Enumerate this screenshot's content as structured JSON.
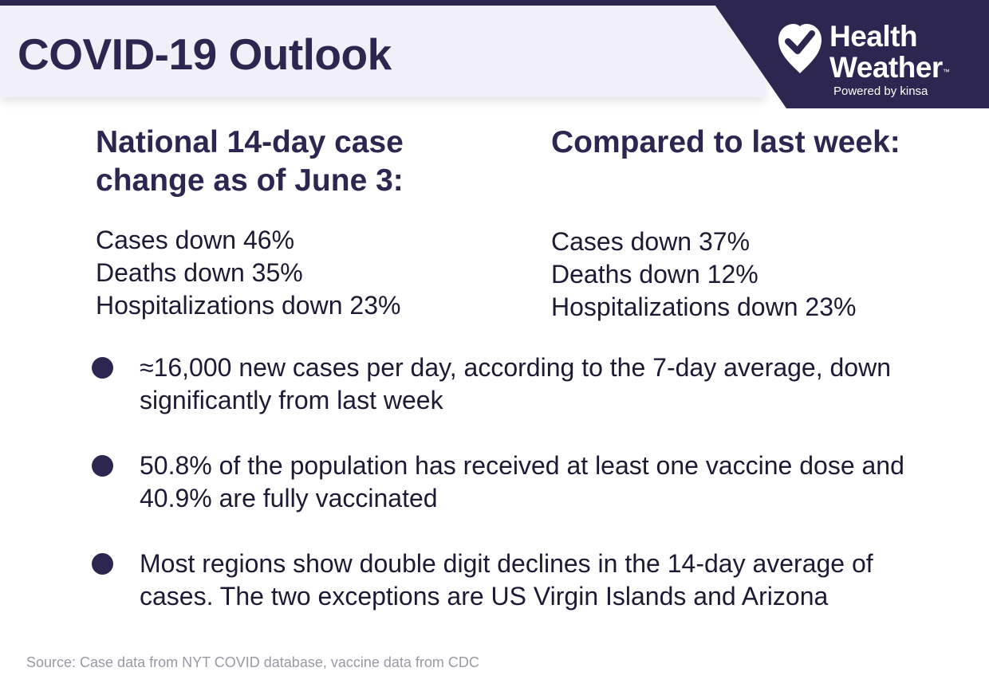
{
  "header": {
    "title": "COVID-19 Outlook",
    "brand": {
      "name_line1": "Health",
      "name_line2": "Weather",
      "trademark": "™",
      "tagline": "Powered by kinsa",
      "icon": "heart-check-icon"
    }
  },
  "national": {
    "heading": "National 14-day case change as of June 3:",
    "stats": [
      "Cases down 46%",
      "Deaths down 35%",
      "Hospitalizations down 23%"
    ]
  },
  "comparison": {
    "heading": "Compared to last week:",
    "stats": [
      "Cases down 37%",
      "Deaths down 12%",
      "Hospitalizations down 23%"
    ]
  },
  "bullets": [
    "≈16,000 new cases per day, according to the 7-day average, down significantly from last week",
    "50.8% of the population has received at least one vaccine dose and 40.9% are fully vaccinated",
    "Most regions show double digit declines in the 14-day average of cases. The two exceptions are US Virgin Islands and Arizona"
  ],
  "source": "Source: Case data from NYT COVID database, vaccine data from CDC",
  "colors": {
    "primary": "#2d2650",
    "header_band": "#f1f0f8",
    "body_text": "#1d1a33",
    "source_text": "#9a98a4"
  }
}
